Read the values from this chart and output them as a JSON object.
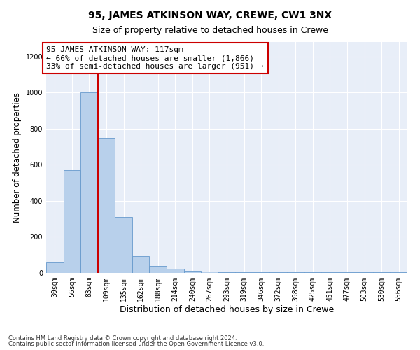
{
  "title": "95, JAMES ATKINSON WAY, CREWE, CW1 3NX",
  "subtitle": "Size of property relative to detached houses in Crewe",
  "xlabel": "Distribution of detached houses by size in Crewe",
  "ylabel": "Number of detached properties",
  "footnote1": "Contains HM Land Registry data © Crown copyright and database right 2024.",
  "footnote2": "Contains public sector information licensed under the Open Government Licence v3.0.",
  "bar_labels": [
    "30sqm",
    "56sqm",
    "83sqm",
    "109sqm",
    "135sqm",
    "162sqm",
    "188sqm",
    "214sqm",
    "240sqm",
    "267sqm",
    "293sqm",
    "319sqm",
    "346sqm",
    "372sqm",
    "398sqm",
    "425sqm",
    "451sqm",
    "477sqm",
    "503sqm",
    "530sqm",
    "556sqm"
  ],
  "bar_values": [
    60,
    570,
    1000,
    750,
    310,
    95,
    37,
    22,
    13,
    7,
    5,
    5,
    5,
    5,
    5,
    5,
    5,
    5,
    5,
    5,
    5
  ],
  "bar_color": "#b8d0eb",
  "bar_edgecolor": "#6699cc",
  "vline_color": "#cc0000",
  "annotation_title": "95 JAMES ATKINSON WAY: 117sqm",
  "annotation_line1": "← 66% of detached houses are smaller (1,866)",
  "annotation_line2": "33% of semi-detached houses are larger (951) →",
  "ylim": [
    0,
    1280
  ],
  "yticks": [
    0,
    200,
    400,
    600,
    800,
    1000,
    1200
  ],
  "plot_bg_color": "#e8eef8",
  "title_fontsize": 10,
  "subtitle_fontsize": 9,
  "annotation_fontsize": 8,
  "tick_fontsize": 7,
  "ylabel_fontsize": 8.5,
  "xlabel_fontsize": 9
}
